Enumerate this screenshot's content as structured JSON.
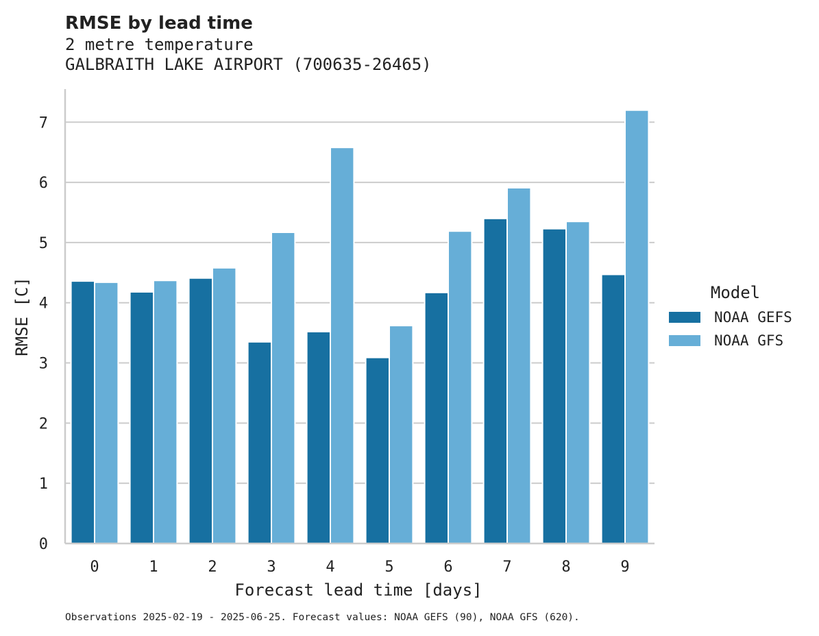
{
  "chart_data": {
    "type": "bar",
    "title": "RMSE by lead time",
    "subtitle_lines": [
      "2 metre temperature",
      "GALBRAITH LAKE AIRPORT (700635-26465)"
    ],
    "xlabel": "Forecast lead time [days]",
    "ylabel": "RMSE [C]",
    "categories": [
      "0",
      "1",
      "2",
      "3",
      "4",
      "5",
      "6",
      "7",
      "8",
      "9"
    ],
    "yticks": [
      "0",
      "1",
      "2",
      "3",
      "4",
      "5",
      "6",
      "7"
    ],
    "ylim": [
      0,
      7.55
    ],
    "grid": "horizontal",
    "legend": {
      "title": "Model",
      "placement": "right"
    },
    "series": [
      {
        "name": "NOAA GEFS",
        "color": "#1770a1",
        "values": [
          4.36,
          4.18,
          4.41,
          3.35,
          3.52,
          3.09,
          4.17,
          5.4,
          5.23,
          4.47
        ]
      },
      {
        "name": "NOAA GFS",
        "color": "#66aed7",
        "values": [
          4.34,
          4.37,
          4.58,
          5.17,
          6.58,
          3.62,
          5.19,
          5.91,
          5.35,
          7.2
        ]
      }
    ],
    "footnote": "Observations 2025-02-19 - 2025-06-25. Forecast values: NOAA GEFS (90), NOAA GFS (620)."
  }
}
